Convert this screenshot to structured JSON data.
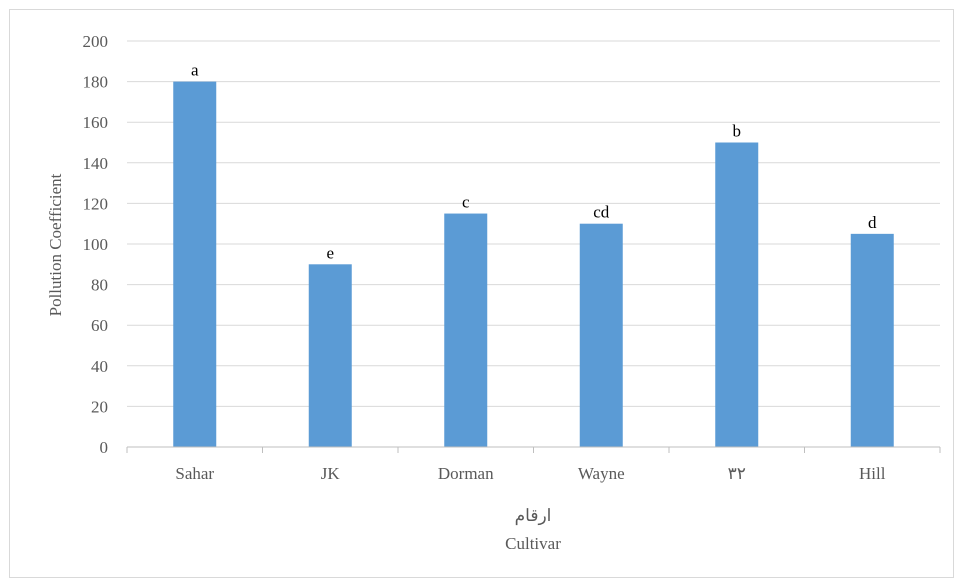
{
  "chart_data": {
    "type": "bar",
    "categories": [
      "Sahar",
      "JK",
      "Dorman",
      "Wayne",
      "۳۲",
      "Hill"
    ],
    "values": [
      180,
      90,
      115,
      110,
      150,
      105
    ],
    "data_labels": [
      "a",
      "e",
      "c",
      "cd",
      "b",
      "d"
    ],
    "title": "",
    "xlabel": "ارقام",
    "xlabel_secondary": "Cultivar",
    "ylabel": "Pollution Coefficient",
    "ylim": [
      0,
      200
    ],
    "yticks": [
      0,
      20,
      40,
      60,
      80,
      100,
      120,
      140,
      160,
      180,
      200
    ],
    "grid": true,
    "legend": "none",
    "colors": {
      "bar": "#5b9bd5",
      "grid": "#d9d9d9",
      "axis": "#bfbfbf",
      "tick_text": "#595959",
      "label_text": "#000000"
    }
  }
}
